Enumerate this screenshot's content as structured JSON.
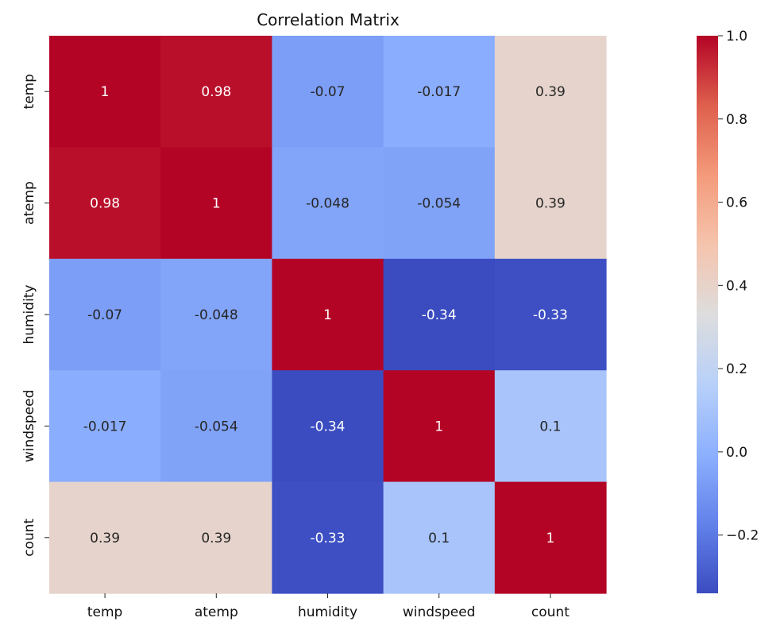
{
  "chart_data": {
    "type": "heatmap",
    "title": "Correlation Matrix",
    "x_categories": [
      "temp",
      "atemp",
      "humidity",
      "windspeed",
      "count"
    ],
    "y_categories": [
      "temp",
      "atemp",
      "humidity",
      "windspeed",
      "count"
    ],
    "values": [
      [
        1,
        0.98,
        -0.07,
        -0.017,
        0.39
      ],
      [
        0.98,
        1,
        -0.048,
        -0.054,
        0.39
      ],
      [
        -0.07,
        -0.048,
        1,
        -0.34,
        -0.33
      ],
      [
        -0.017,
        -0.054,
        -0.34,
        1,
        0.1
      ],
      [
        0.39,
        0.39,
        -0.33,
        0.1,
        1
      ]
    ],
    "annotations": [
      [
        "1",
        "0.98",
        "-0.07",
        "-0.017",
        "0.39"
      ],
      [
        "0.98",
        "1",
        "-0.048",
        "-0.054",
        "0.39"
      ],
      [
        "-0.07",
        "-0.048",
        "1",
        "-0.34",
        "-0.33"
      ],
      [
        "-0.017",
        "-0.054",
        "-0.34",
        "1",
        "0.1"
      ],
      [
        "0.39",
        "0.39",
        "-0.33",
        "0.1",
        "1"
      ]
    ],
    "colormap": "coolwarm",
    "vmin": -0.34,
    "vmax": 1.0,
    "colorbar": {
      "ticks": [
        -0.2,
        0.0,
        0.2,
        0.4,
        0.6,
        0.8,
        1.0
      ],
      "tick_labels": [
        "−0.2",
        "0.0",
        "0.2",
        "0.4",
        "0.6",
        "0.8",
        "1.0"
      ]
    }
  }
}
